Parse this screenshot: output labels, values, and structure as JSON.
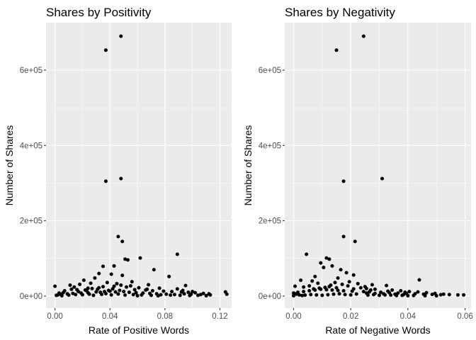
{
  "chart_data": [
    {
      "type": "scatter",
      "title": "Shares by Positivity",
      "xlabel": "Rate of Positive Words",
      "ylabel": "Number of Shares",
      "xlim": [
        -0.0065,
        0.1285
      ],
      "ylim": [
        -32000,
        726000
      ],
      "x_ticks": [
        0.0,
        0.04,
        0.08,
        0.12
      ],
      "x_tick_labels": [
        "0.00",
        "0.04",
        "0.08",
        "0.12"
      ],
      "y_ticks": [
        0,
        200000,
        400000,
        600000
      ],
      "y_tick_labels": [
        "0e+00",
        "2e+05",
        "4e+05",
        "6e+05"
      ],
      "grid": true,
      "legend": "none",
      "panel_background": "#ebebeb",
      "point_color": "#000000",
      "points": [
        [
          0.048,
          690000
        ],
        [
          0.037,
          653000
        ],
        [
          0.048,
          312000
        ],
        [
          0.037,
          305000
        ],
        [
          0.046,
          158000
        ],
        [
          0.049,
          145000
        ],
        [
          0.089,
          111000
        ],
        [
          0.051,
          98000
        ],
        [
          0.053,
          96000
        ],
        [
          0.062,
          101000
        ],
        [
          0.035,
          79000
        ],
        [
          0.043,
          80000
        ],
        [
          0.072,
          70000
        ],
        [
          0.083,
          52000
        ],
        [
          0.032,
          60000
        ],
        [
          0.041,
          58000
        ],
        [
          0.049,
          55000
        ],
        [
          0.029,
          48000
        ],
        [
          0.021,
          42000
        ],
        [
          0.056,
          38000
        ],
        [
          0.038,
          36000
        ],
        [
          0.045,
          33000
        ],
        [
          0.018,
          31000
        ],
        [
          0.011,
          29000
        ],
        [
          0.026,
          34000
        ],
        [
          0.068,
          30000
        ],
        [
          0.095,
          28000
        ],
        [
          0.0,
          26000
        ],
        [
          0.014,
          24000
        ],
        [
          0.035,
          25000
        ],
        [
          0.052,
          24000
        ],
        [
          0.061,
          22000
        ],
        [
          0.076,
          21000
        ],
        [
          0.089,
          19000
        ],
        [
          0.027,
          20000
        ],
        [
          0.042,
          19000
        ],
        [
          0.031,
          18000
        ],
        [
          0.058,
          17000
        ],
        [
          0.066,
          16000
        ],
        [
          0.016,
          17000
        ],
        [
          0.022,
          16000
        ],
        [
          0.039,
          15000
        ],
        [
          0.047,
          15000
        ],
        [
          0.007,
          14000
        ],
        [
          0.079,
          13000
        ],
        [
          0.085,
          12000
        ],
        [
          0.092,
          11000
        ],
        [
          0.097,
          10000
        ],
        [
          0.102,
          9000
        ],
        [
          0.108,
          7000
        ],
        [
          0.112,
          6000
        ],
        [
          0.124,
          11000
        ],
        [
          0.125,
          5000
        ],
        [
          0.113,
          3000
        ],
        [
          0.106,
          4000
        ],
        [
          0.099,
          5000
        ],
        [
          0.094,
          6000
        ],
        [
          0.087,
          4000
        ],
        [
          0.081,
          5000
        ],
        [
          0.074,
          6000
        ],
        [
          0.069,
          7000
        ],
        [
          0.064,
          8000
        ],
        [
          0.059,
          9000
        ],
        [
          0.054,
          10000
        ],
        [
          0.05,
          12000
        ],
        [
          0.044,
          11000
        ],
        [
          0.04,
          13000
        ],
        [
          0.036,
          12000
        ],
        [
          0.033,
          10000
        ],
        [
          0.03,
          11000
        ],
        [
          0.024,
          9000
        ],
        [
          0.019,
          8000
        ],
        [
          0.013,
          7000
        ],
        [
          0.009,
          6000
        ],
        [
          0.004,
          5000
        ],
        [
          0.002,
          3000
        ],
        [
          0.001,
          2000
        ],
        [
          0.005,
          1000
        ],
        [
          0.01,
          2500
        ],
        [
          0.015,
          4000
        ],
        [
          0.02,
          3500
        ],
        [
          0.025,
          5000
        ],
        [
          0.028,
          2000
        ],
        [
          0.034,
          4500
        ],
        [
          0.037,
          6500
        ],
        [
          0.041,
          3000
        ],
        [
          0.046,
          5500
        ],
        [
          0.051,
          2500
        ],
        [
          0.057,
          4000
        ],
        [
          0.063,
          3000
        ],
        [
          0.07,
          2000
        ],
        [
          0.077,
          3500
        ],
        [
          0.084,
          2500
        ],
        [
          0.091,
          2000
        ],
        [
          0.098,
          1500
        ],
        [
          0.104,
          2000
        ],
        [
          0.11,
          1000
        ],
        [
          0.071,
          14000
        ],
        [
          0.067,
          18000
        ],
        [
          0.055,
          27000
        ],
        [
          0.048,
          29000
        ],
        [
          0.043,
          26000
        ],
        [
          0.032,
          22000
        ],
        [
          0.024,
          21000
        ],
        [
          0.012,
          18000
        ],
        [
          0.06,
          1000
        ],
        [
          0.075,
          800
        ],
        [
          0.023,
          14000
        ],
        [
          0.017,
          12000
        ],
        [
          0.006,
          9000
        ],
        [
          0.003,
          8000
        ],
        [
          0.093,
          15000
        ],
        [
          0.1,
          12000
        ]
      ]
    },
    {
      "type": "scatter",
      "title": "Shares by Negativity",
      "xlabel": "Rate of Negative Words",
      "ylabel": "Number of Shares",
      "xlim": [
        -0.0031,
        0.0621
      ],
      "ylim": [
        -32000,
        726000
      ],
      "x_ticks": [
        0.0,
        0.02,
        0.04,
        0.06
      ],
      "x_tick_labels": [
        "0.00",
        "0.02",
        "0.04",
        "0.06"
      ],
      "y_ticks": [
        0,
        200000,
        400000,
        600000
      ],
      "y_tick_labels": [
        "0e+00",
        "2e+05",
        "4e+05",
        "6e+05"
      ],
      "grid": true,
      "legend": "none",
      "panel_background": "#ebebeb",
      "point_color": "#000000",
      "points": [
        [
          0.0245,
          690000
        ],
        [
          0.015,
          653000
        ],
        [
          0.031,
          312000
        ],
        [
          0.0175,
          305000
        ],
        [
          0.0175,
          158000
        ],
        [
          0.0215,
          145000
        ],
        [
          0.0045,
          111000
        ],
        [
          0.0115,
          101000
        ],
        [
          0.0125,
          98000
        ],
        [
          0.0095,
          88000
        ],
        [
          0.0135,
          80000
        ],
        [
          0.0105,
          76000
        ],
        [
          0.0165,
          70000
        ],
        [
          0.0185,
          62000
        ],
        [
          0.0075,
          52000
        ],
        [
          0.021,
          56000
        ],
        [
          0.0155,
          48000
        ],
        [
          0.0025,
          42000
        ],
        [
          0.044,
          43000
        ],
        [
          0.0065,
          40000
        ],
        [
          0.0195,
          38000
        ],
        [
          0.0145,
          36000
        ],
        [
          0.0085,
          34000
        ],
        [
          0.0225,
          33000
        ],
        [
          0.0275,
          30000
        ],
        [
          0.0325,
          28000
        ],
        [
          0.0055,
          27000
        ],
        [
          0.0005,
          26000
        ],
        [
          0.0035,
          24000
        ],
        [
          0.0125,
          25000
        ],
        [
          0.0235,
          22000
        ],
        [
          0.0255,
          20000
        ],
        [
          0.0285,
          18000
        ],
        [
          0.0345,
          16000
        ],
        [
          0.0375,
          14000
        ],
        [
          0.0405,
          12000
        ],
        [
          0.0435,
          11000
        ],
        [
          0.0465,
          9000
        ],
        [
          0.0495,
          7000
        ],
        [
          0.0525,
          5000
        ],
        [
          0.0575,
          3000
        ],
        [
          0.0595,
          3000
        ],
        [
          0.0545,
          4000
        ],
        [
          0.0515,
          3500
        ],
        [
          0.0485,
          4500
        ],
        [
          0.0455,
          5000
        ],
        [
          0.0425,
          6000
        ],
        [
          0.0395,
          7000
        ],
        [
          0.0365,
          8000
        ],
        [
          0.0335,
          9000
        ],
        [
          0.0305,
          10000
        ],
        [
          0.0265,
          11000
        ],
        [
          0.0245,
          12000
        ],
        [
          0.0205,
          13000
        ],
        [
          0.0175,
          14000
        ],
        [
          0.0155,
          15000
        ],
        [
          0.0135,
          16000
        ],
        [
          0.0115,
          17000
        ],
        [
          0.0095,
          18000
        ],
        [
          0.0075,
          16000
        ],
        [
          0.0055,
          14000
        ],
        [
          0.0035,
          12000
        ],
        [
          0.0015,
          10000
        ],
        [
          0.0,
          8000
        ],
        [
          0.001,
          5000
        ],
        [
          0.002,
          3000
        ],
        [
          0.003,
          1500
        ],
        [
          0.004,
          2500
        ],
        [
          0.006,
          4000
        ],
        [
          0.008,
          3000
        ],
        [
          0.01,
          2000
        ],
        [
          0.012,
          3500
        ],
        [
          0.014,
          5000
        ],
        [
          0.016,
          6000
        ],
        [
          0.018,
          4000
        ],
        [
          0.02,
          3000
        ],
        [
          0.022,
          5500
        ],
        [
          0.026,
          2500
        ],
        [
          0.028,
          4000
        ],
        [
          0.03,
          2000
        ],
        [
          0.032,
          3000
        ],
        [
          0.034,
          2500
        ],
        [
          0.036,
          1500
        ],
        [
          0.038,
          2000
        ],
        [
          0.04,
          1000
        ],
        [
          0.042,
          1500
        ],
        [
          0.046,
          1000
        ],
        [
          0.05,
          800
        ],
        [
          0.025,
          25000
        ],
        [
          0.019,
          27000
        ],
        [
          0.017,
          31000
        ],
        [
          0.013,
          29000
        ],
        [
          0.009,
          21000
        ],
        [
          0.007,
          19000
        ],
        [
          0.011,
          23000
        ],
        [
          0.015,
          22000
        ],
        [
          0.021,
          19000
        ],
        [
          0.027,
          16000
        ],
        [
          0.033,
          13000
        ],
        [
          0.039,
          10000
        ],
        [
          0.0,
          1000
        ],
        [
          0.0005,
          6000
        ],
        [
          0.0255,
          8000
        ],
        [
          0.0285,
          7000
        ],
        [
          0.0315,
          6000
        ],
        [
          0.0355,
          5000
        ],
        [
          0.0385,
          4000
        ]
      ]
    }
  ]
}
